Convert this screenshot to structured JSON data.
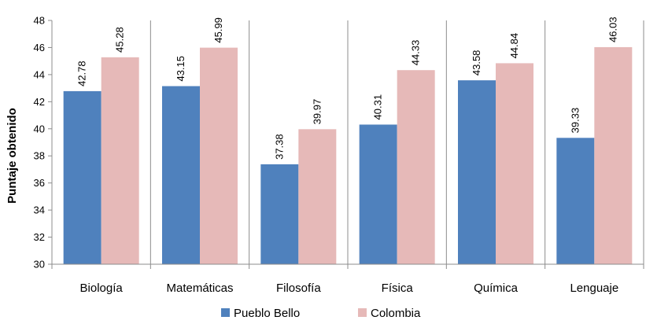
{
  "chart_data": {
    "type": "bar",
    "title": "",
    "xlabel": "",
    "ylabel": "Puntaje obtenido",
    "ylim": [
      30,
      48
    ],
    "yticks": [
      30,
      32,
      34,
      36,
      38,
      40,
      42,
      44,
      46,
      48
    ],
    "categories": [
      "Biología",
      "Matemáticas",
      "Filosofía",
      "Física",
      "Química",
      "Lenguaje"
    ],
    "series": [
      {
        "name": "Pueblo Bello",
        "color": "#4f81bd",
        "values": [
          42.78,
          43.15,
          37.38,
          40.31,
          43.58,
          39.33
        ]
      },
      {
        "name": "Colombia",
        "color": "#e6b9b8",
        "values": [
          45.28,
          45.99,
          39.97,
          44.33,
          44.84,
          46.03
        ]
      }
    ],
    "data_labels": [
      [
        "42.78",
        "43.15",
        "37.38",
        "40.31",
        "43.58",
        "39.33"
      ],
      [
        "45.28",
        "45.99",
        "39.97",
        "44.33",
        "44.84",
        "46.03"
      ]
    ],
    "grid": false,
    "category_separators": true,
    "legend": "bottom"
  }
}
